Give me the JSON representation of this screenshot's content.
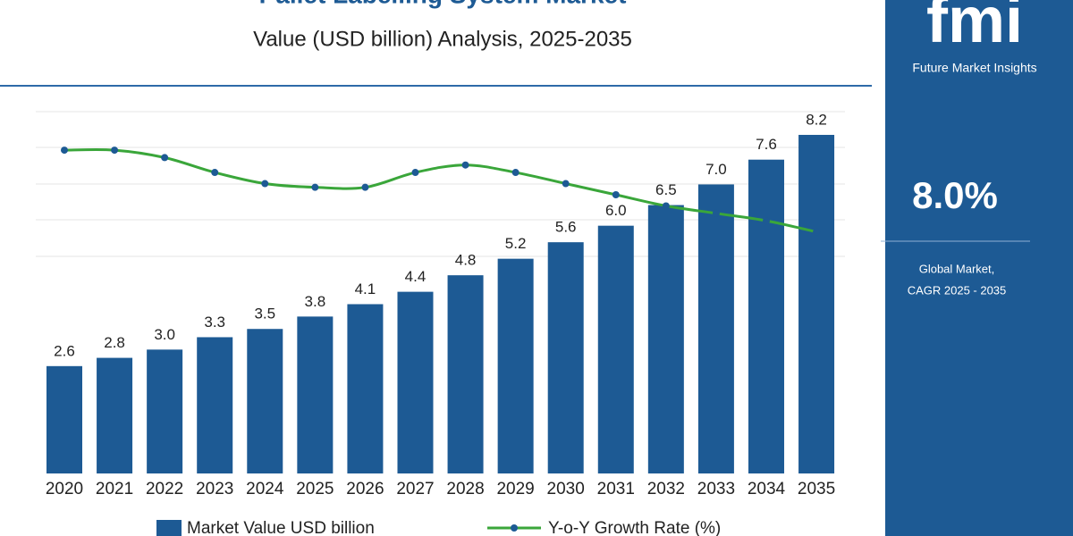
{
  "chart_data": {
    "type": "bar",
    "title": "Pallet Labelling System Market",
    "subtitle": "Value (USD billion) Analysis, 2025-2035",
    "categories": [
      "2020",
      "2021",
      "2022",
      "2023",
      "2024",
      "2025",
      "2026",
      "2027",
      "2028",
      "2029",
      "2030",
      "2031",
      "2032",
      "2033",
      "2034",
      "2035"
    ],
    "series": [
      {
        "name": "Market Value USD billion",
        "type": "bar",
        "color": "#1d5a94",
        "values": [
          2.6,
          2.8,
          3.0,
          3.3,
          3.5,
          3.8,
          4.1,
          4.4,
          4.8,
          5.2,
          5.6,
          6.0,
          6.5,
          7.0,
          7.6,
          8.2
        ],
        "value_labels": [
          "2.6",
          "2.8",
          "3.0",
          "3.3",
          "3.5",
          "3.8",
          "4.1",
          "4.4",
          "4.8",
          "5.2",
          "5.6",
          "6.0",
          "6.5",
          "7.0",
          "7.6",
          "8.2"
        ]
      },
      {
        "name": "Y-o-Y Growth Rate (%)",
        "type": "line",
        "axis": "y2",
        "color": "#3aa63a",
        "values": [
          8.7,
          8.7,
          8.5,
          8.1,
          7.8,
          7.7,
          7.7,
          8.1,
          8.3,
          8.1,
          7.8,
          7.5,
          7.2,
          7.0,
          6.8,
          6.5
        ]
      }
    ],
    "ylim": [
      0,
      9
    ],
    "y2lim": [
      0,
      10
    ],
    "grid": true
  },
  "panel": {
    "logo": "fmi",
    "brand": "Future Market Insights",
    "cagr": "8.0%",
    "caption_1": "Global Market,",
    "caption_2": "CAGR 2025 - 2035"
  }
}
